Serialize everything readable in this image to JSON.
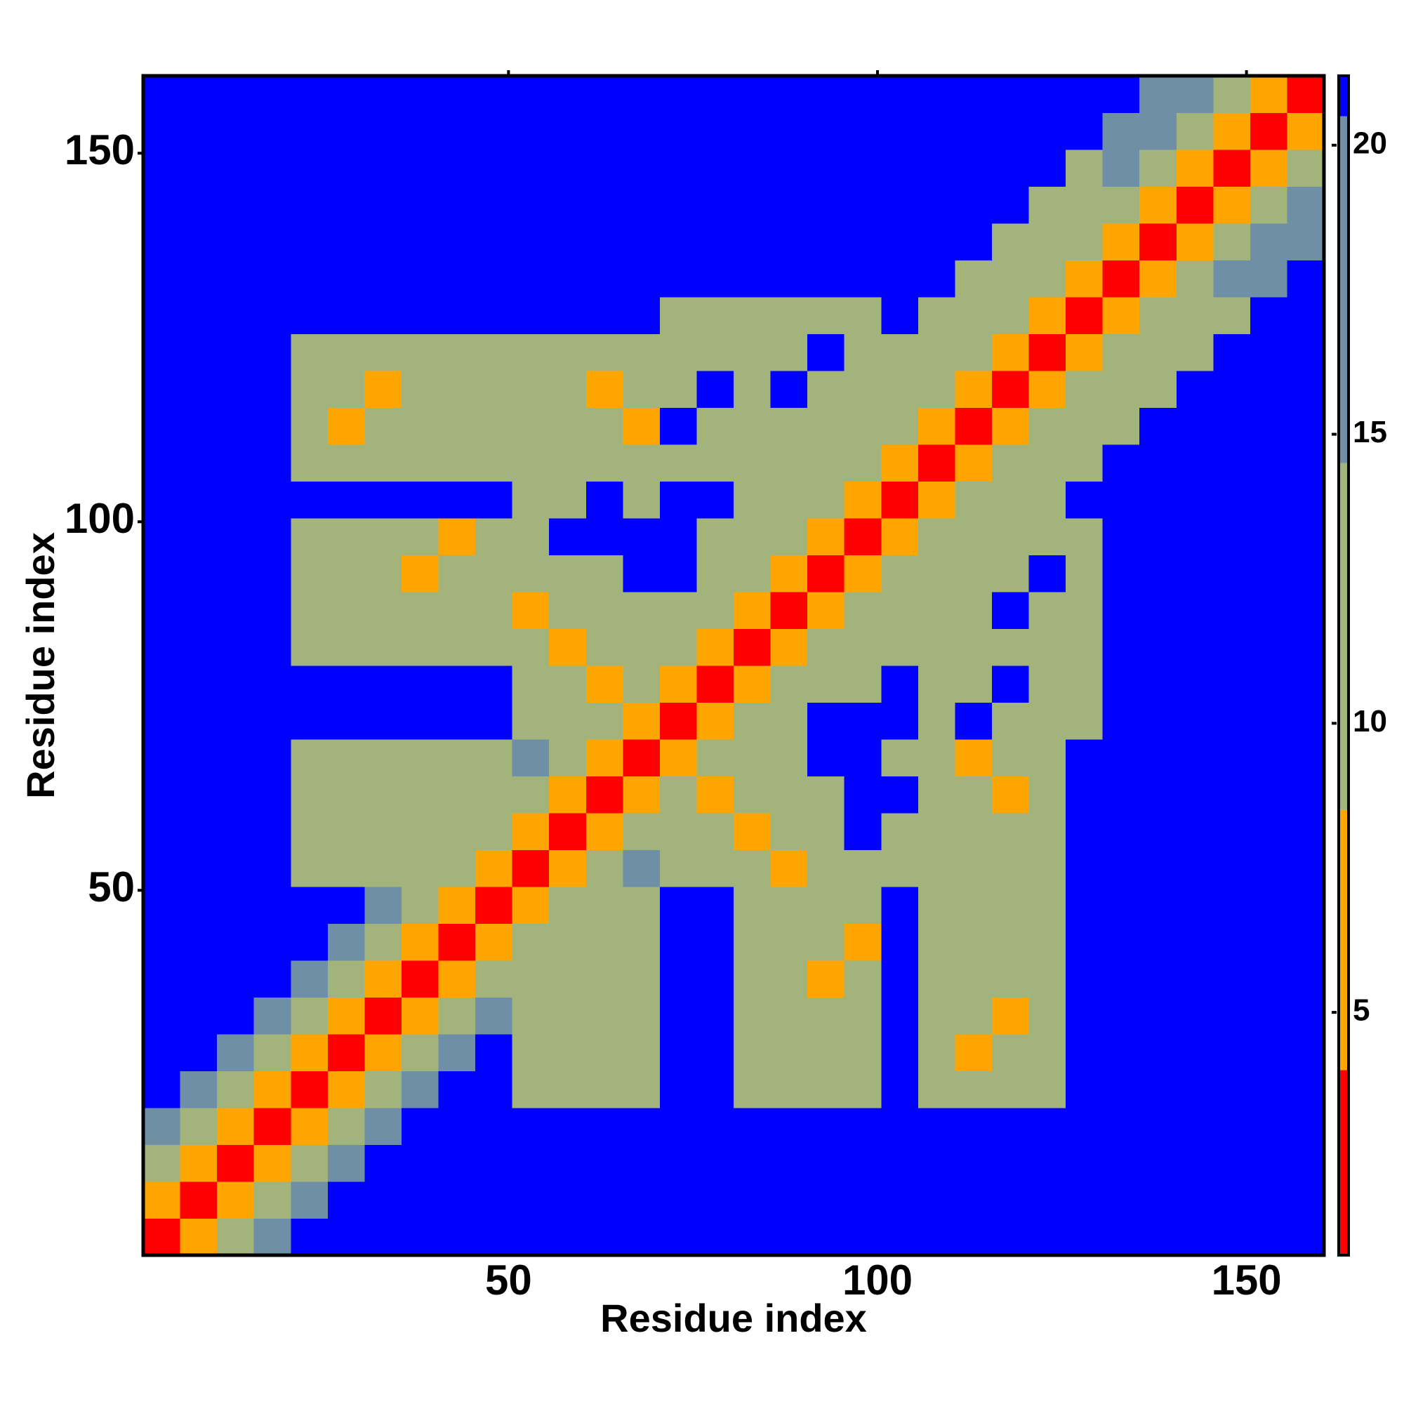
{
  "chart_data": {
    "type": "heatmap",
    "xlabel": "Residue index",
    "ylabel": "Residue index",
    "xlim": [
      0.5,
      160.5
    ],
    "ylim": [
      0.5,
      160.5
    ],
    "xticks": [
      50,
      100,
      150
    ],
    "yticks": [
      50,
      100,
      150
    ],
    "colorbar": {
      "lim": [
        0.8,
        21.2
      ],
      "ticks": [
        5,
        10,
        15,
        20
      ],
      "bounds": [
        4,
        8.5,
        14.5,
        20.5
      ],
      "colors": [
        "#ff0000",
        "#ffa500",
        "#a3b37c",
        "#6e8fa6",
        "#0000ff"
      ]
    },
    "z": [
      [
        3,
        7,
        12,
        15,
        21,
        21,
        21,
        21,
        21,
        21,
        21,
        21,
        21,
        21,
        21,
        21,
        21,
        21,
        21,
        21,
        21,
        21,
        21,
        21,
        21,
        21,
        21,
        21,
        21,
        21,
        21,
        21
      ],
      [
        7,
        3,
        7,
        12,
        15,
        21,
        21,
        21,
        21,
        21,
        21,
        21,
        21,
        21,
        21,
        21,
        21,
        21,
        21,
        21,
        21,
        21,
        21,
        21,
        21,
        21,
        21,
        21,
        21,
        21,
        21,
        21
      ],
      [
        12,
        7,
        3,
        7,
        12,
        15,
        21,
        21,
        21,
        21,
        21,
        21,
        21,
        21,
        21,
        21,
        21,
        21,
        21,
        21,
        21,
        21,
        21,
        21,
        21,
        21,
        21,
        21,
        21,
        21,
        21,
        21
      ],
      [
        15,
        12,
        7,
        3,
        7,
        12,
        15,
        21,
        21,
        21,
        21,
        21,
        21,
        21,
        21,
        21,
        21,
        21,
        21,
        21,
        21,
        21,
        21,
        21,
        21,
        21,
        21,
        21,
        21,
        21,
        21,
        21
      ],
      [
        21,
        15,
        12,
        7,
        3,
        7,
        12,
        15,
        21,
        21,
        13,
        13,
        13,
        13,
        21,
        21,
        12,
        12,
        12,
        12,
        21,
        12,
        12,
        12,
        12,
        21,
        21,
        21,
        21,
        21,
        21,
        21
      ],
      [
        21,
        21,
        15,
        12,
        7,
        3,
        7,
        12,
        15,
        21,
        13,
        13,
        13,
        13,
        21,
        21,
        12,
        12,
        12,
        12,
        21,
        12,
        8,
        12,
        12,
        21,
        21,
        21,
        21,
        21,
        21,
        21
      ],
      [
        21,
        21,
        21,
        15,
        12,
        7,
        3,
        7,
        12,
        15,
        13,
        9,
        13,
        13,
        21,
        21,
        12,
        12,
        12,
        12,
        21,
        12,
        12,
        8,
        12,
        21,
        21,
        21,
        21,
        21,
        21,
        21
      ],
      [
        21,
        21,
        21,
        21,
        15,
        12,
        7,
        3,
        7,
        12,
        13,
        13,
        13,
        13,
        21,
        21,
        12,
        12,
        8,
        12,
        21,
        12,
        12,
        12,
        12,
        21,
        21,
        21,
        21,
        21,
        21,
        21
      ],
      [
        21,
        21,
        21,
        21,
        21,
        15,
        12,
        7,
        3,
        7,
        13,
        13,
        9,
        13,
        21,
        21,
        12,
        12,
        12,
        8,
        21,
        12,
        12,
        12,
        12,
        21,
        21,
        21,
        21,
        21,
        21,
        21
      ],
      [
        21,
        21,
        21,
        21,
        21,
        21,
        15,
        12,
        7,
        3,
        7,
        13,
        13,
        13,
        21,
        21,
        12,
        12,
        12,
        12,
        21,
        12,
        12,
        12,
        12,
        21,
        21,
        21,
        21,
        21,
        21,
        21
      ],
      [
        21,
        21,
        21,
        21,
        13,
        13,
        13,
        13,
        13,
        7,
        3,
        7,
        12,
        15,
        13,
        13,
        13,
        6,
        13,
        13,
        13,
        13,
        13,
        13,
        13,
        21,
        21,
        21,
        21,
        21,
        21,
        21
      ],
      [
        21,
        21,
        21,
        21,
        13,
        13,
        9,
        13,
        13,
        13,
        7,
        3,
        7,
        12,
        13,
        13,
        6,
        13,
        13,
        21,
        13,
        13,
        13,
        13,
        13,
        21,
        21,
        21,
        21,
        21,
        21,
        21
      ],
      [
        21,
        21,
        21,
        21,
        13,
        13,
        13,
        13,
        9,
        13,
        12,
        7,
        3,
        7,
        13,
        6,
        13,
        13,
        13,
        21,
        21,
        13,
        13,
        6,
        13,
        21,
        21,
        21,
        21,
        21,
        21,
        21
      ],
      [
        21,
        21,
        21,
        21,
        13,
        13,
        13,
        13,
        13,
        13,
        15,
        12,
        7,
        3,
        7,
        13,
        13,
        13,
        21,
        21,
        13,
        13,
        6,
        13,
        13,
        21,
        21,
        21,
        21,
        21,
        21,
        21
      ],
      [
        21,
        21,
        21,
        21,
        21,
        21,
        21,
        21,
        21,
        21,
        13,
        13,
        13,
        7,
        3,
        7,
        14,
        14,
        21,
        21,
        21,
        14,
        21,
        14,
        14,
        14,
        21,
        21,
        21,
        21,
        21,
        21
      ],
      [
        21,
        21,
        21,
        21,
        21,
        21,
        21,
        21,
        21,
        21,
        13,
        13,
        6,
        13,
        7,
        3,
        7,
        14,
        14,
        14,
        21,
        14,
        14,
        21,
        14,
        14,
        21,
        21,
        21,
        21,
        21,
        21
      ],
      [
        21,
        21,
        21,
        21,
        12,
        12,
        12,
        12,
        12,
        12,
        13,
        6,
        13,
        13,
        14,
        7,
        3,
        7,
        14,
        14,
        14,
        14,
        14,
        14,
        14,
        14,
        21,
        21,
        21,
        21,
        21,
        21
      ],
      [
        21,
        21,
        21,
        21,
        12,
        12,
        12,
        12,
        12,
        12,
        6,
        13,
        13,
        13,
        14,
        14,
        7,
        3,
        7,
        14,
        14,
        14,
        14,
        21,
        14,
        14,
        21,
        21,
        21,
        21,
        21,
        21
      ],
      [
        21,
        21,
        21,
        21,
        12,
        12,
        12,
        8,
        12,
        12,
        13,
        13,
        13,
        21,
        21,
        14,
        14,
        7,
        3,
        7,
        14,
        14,
        14,
        14,
        21,
        14,
        21,
        21,
        21,
        21,
        21,
        21
      ],
      [
        21,
        21,
        21,
        21,
        12,
        12,
        12,
        12,
        8,
        12,
        13,
        21,
        21,
        21,
        21,
        14,
        14,
        14,
        7,
        3,
        7,
        14,
        14,
        14,
        14,
        14,
        21,
        21,
        21,
        21,
        21,
        21
      ],
      [
        21,
        21,
        21,
        21,
        21,
        21,
        21,
        21,
        21,
        21,
        13,
        13,
        21,
        13,
        21,
        21,
        14,
        14,
        14,
        7,
        3,
        7,
        12,
        14,
        14,
        21,
        21,
        21,
        21,
        21,
        21,
        21
      ],
      [
        21,
        21,
        21,
        21,
        12,
        12,
        12,
        12,
        12,
        12,
        13,
        13,
        13,
        13,
        14,
        14,
        14,
        14,
        14,
        14,
        7,
        3,
        7,
        12,
        14,
        14,
        21,
        21,
        21,
        21,
        21,
        21
      ],
      [
        21,
        21,
        21,
        21,
        12,
        8,
        12,
        12,
        12,
        12,
        13,
        13,
        13,
        6,
        21,
        14,
        14,
        14,
        14,
        14,
        12,
        7,
        3,
        7,
        12,
        14,
        14,
        21,
        21,
        21,
        21,
        21
      ],
      [
        21,
        21,
        21,
        21,
        12,
        12,
        8,
        12,
        12,
        12,
        13,
        13,
        6,
        13,
        14,
        21,
        14,
        21,
        14,
        14,
        14,
        12,
        7,
        3,
        7,
        12,
        14,
        14,
        21,
        21,
        21,
        21
      ],
      [
        21,
        21,
        21,
        21,
        12,
        12,
        12,
        12,
        12,
        12,
        13,
        13,
        13,
        13,
        14,
        14,
        14,
        14,
        21,
        14,
        14,
        14,
        12,
        7,
        3,
        7,
        12,
        14,
        14,
        21,
        21,
        21
      ],
      [
        21,
        21,
        21,
        21,
        21,
        21,
        21,
        21,
        21,
        21,
        21,
        21,
        21,
        21,
        14,
        14,
        14,
        14,
        14,
        14,
        21,
        14,
        14,
        12,
        7,
        3,
        7,
        12,
        14,
        14,
        21,
        21
      ],
      [
        21,
        21,
        21,
        21,
        21,
        21,
        21,
        21,
        21,
        21,
        21,
        21,
        21,
        21,
        21,
        21,
        21,
        21,
        21,
        21,
        21,
        21,
        14,
        14,
        12,
        7,
        3,
        7,
        12,
        15,
        18,
        21
      ],
      [
        21,
        21,
        21,
        21,
        21,
        21,
        21,
        21,
        21,
        21,
        21,
        21,
        21,
        21,
        21,
        21,
        21,
        21,
        21,
        21,
        21,
        21,
        21,
        14,
        14,
        12,
        7,
        3,
        7,
        12,
        15,
        18
      ],
      [
        21,
        21,
        21,
        21,
        21,
        21,
        21,
        21,
        21,
        21,
        21,
        21,
        21,
        21,
        21,
        21,
        21,
        21,
        21,
        21,
        21,
        21,
        21,
        21,
        14,
        14,
        12,
        7,
        3,
        7,
        12,
        15
      ],
      [
        21,
        21,
        21,
        21,
        21,
        21,
        21,
        21,
        21,
        21,
        21,
        21,
        21,
        21,
        21,
        21,
        21,
        21,
        21,
        21,
        21,
        21,
        21,
        21,
        21,
        14,
        15,
        12,
        7,
        3,
        7,
        12
      ],
      [
        21,
        21,
        21,
        21,
        21,
        21,
        21,
        21,
        21,
        21,
        21,
        21,
        21,
        21,
        21,
        21,
        21,
        21,
        21,
        21,
        21,
        21,
        21,
        21,
        21,
        21,
        18,
        15,
        12,
        7,
        3,
        7
      ],
      [
        21,
        21,
        21,
        21,
        21,
        21,
        21,
        21,
        21,
        21,
        21,
        21,
        21,
        21,
        21,
        21,
        21,
        21,
        21,
        21,
        21,
        21,
        21,
        21,
        21,
        21,
        21,
        18,
        15,
        12,
        7,
        3
      ]
    ]
  }
}
